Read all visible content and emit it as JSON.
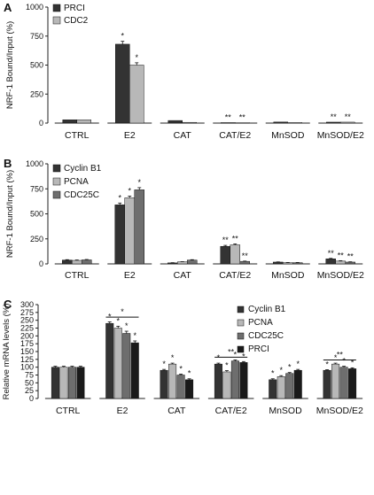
{
  "chart_data": [
    {
      "panel": "A",
      "type": "bar",
      "ylabel": "NRF-1 Bound/Input (%)",
      "ylim": [
        0,
        1000
      ],
      "yticks": [
        "0",
        "250",
        "500",
        "750",
        "1000"
      ],
      "categories": [
        "CTRL",
        "E2",
        "CAT",
        "CAT/E2",
        "MnSOD",
        "MnSOD/E2"
      ],
      "legend_position": "top-left",
      "series": [
        {
          "name": "PRCI",
          "color": "#333333",
          "values": [
            28,
            680,
            22,
            4,
            9,
            8
          ],
          "errors": [
            0,
            25,
            0,
            0,
            0,
            0
          ],
          "stars": [
            "",
            "*",
            "",
            "**",
            "",
            "**"
          ]
        },
        {
          "name": "CDC2",
          "color": "#b8b8b8",
          "values": [
            28,
            500,
            6,
            4,
            5,
            8
          ],
          "errors": [
            0,
            20,
            0,
            0,
            0,
            0
          ],
          "stars": [
            "",
            "*",
            "",
            "**",
            "",
            "**"
          ]
        }
      ]
    },
    {
      "panel": "B",
      "type": "bar",
      "ylabel": "NRF-1 Bound/Input (%)",
      "ylim": [
        0,
        1000
      ],
      "yticks": [
        "0",
        "250",
        "500",
        "750",
        "1000"
      ],
      "categories": [
        "CTRL",
        "E2",
        "CAT",
        "CAT/E2",
        "MnSOD",
        "MnSOD/E2"
      ],
      "legend_position": "top-left",
      "series": [
        {
          "name": "Cyclin B1",
          "color": "#333333",
          "values": [
            38,
            590,
            10,
            175,
            18,
            50
          ],
          "errors": [
            4,
            18,
            2,
            10,
            2,
            5
          ],
          "stars": [
            "",
            "*",
            "",
            "**",
            "",
            "**"
          ]
        },
        {
          "name": "PCNA",
          "color": "#b8b8b8",
          "values": [
            35,
            660,
            20,
            190,
            12,
            28
          ],
          "errors": [
            4,
            18,
            2,
            10,
            2,
            4
          ],
          "stars": [
            "",
            "*",
            "",
            "**",
            "",
            "**"
          ]
        },
        {
          "name": "CDC25C",
          "color": "#6e6e6e",
          "values": [
            40,
            740,
            38,
            25,
            12,
            18
          ],
          "errors": [
            4,
            22,
            4,
            3,
            2,
            3
          ],
          "stars": [
            "",
            "*",
            "",
            "**",
            "",
            "**"
          ]
        }
      ]
    },
    {
      "panel": "C",
      "type": "bar",
      "ylabel": "Relative mRNA levels (%)",
      "ylim": [
        0,
        300
      ],
      "yticks": [
        "0",
        "25",
        "50",
        "75",
        "100",
        "125",
        "150",
        "175",
        "200",
        "225",
        "250",
        "275",
        "300"
      ],
      "categories": [
        "CTRL",
        "E2",
        "CAT",
        "CAT/E2",
        "MnSOD",
        "MnSOD/E2"
      ],
      "legend_position": "top-right",
      "brackets": [
        {
          "category": "E2",
          "label": "*",
          "y": 260
        },
        {
          "category": "CAT/E2",
          "label": "**",
          "y": 132
        },
        {
          "category": "MnSOD/E2",
          "label": "**",
          "y": 123
        }
      ],
      "series": [
        {
          "name": "Cyclin B1",
          "color": "#333333",
          "values": [
            100,
            240,
            90,
            110,
            60,
            90
          ],
          "errors": [
            3,
            5,
            3,
            3,
            3,
            2
          ],
          "stars": [
            "",
            "*",
            "*",
            "*",
            "*",
            "*"
          ]
        },
        {
          "name": "PCNA",
          "color": "#b8b8b8",
          "values": [
            100,
            225,
            110,
            85,
            70,
            110
          ],
          "errors": [
            3,
            6,
            3,
            4,
            3,
            3
          ],
          "stars": [
            "",
            "*",
            "*",
            "*",
            "*",
            "*"
          ]
        },
        {
          "name": "CDC25C",
          "color": "#6e6e6e",
          "values": [
            100,
            208,
            75,
            120,
            80,
            100
          ],
          "errors": [
            3,
            7,
            3,
            3,
            3,
            3
          ],
          "stars": [
            "",
            "*",
            "*",
            "*",
            "*",
            "*"
          ]
        },
        {
          "name": "PRCI",
          "color": "#1a1a1a",
          "values": [
            100,
            178,
            60,
            115,
            90,
            95
          ],
          "errors": [
            3,
            6,
            3,
            3,
            3,
            3
          ],
          "stars": [
            "",
            "*",
            "*",
            "*",
            "*",
            "*"
          ]
        }
      ]
    }
  ]
}
